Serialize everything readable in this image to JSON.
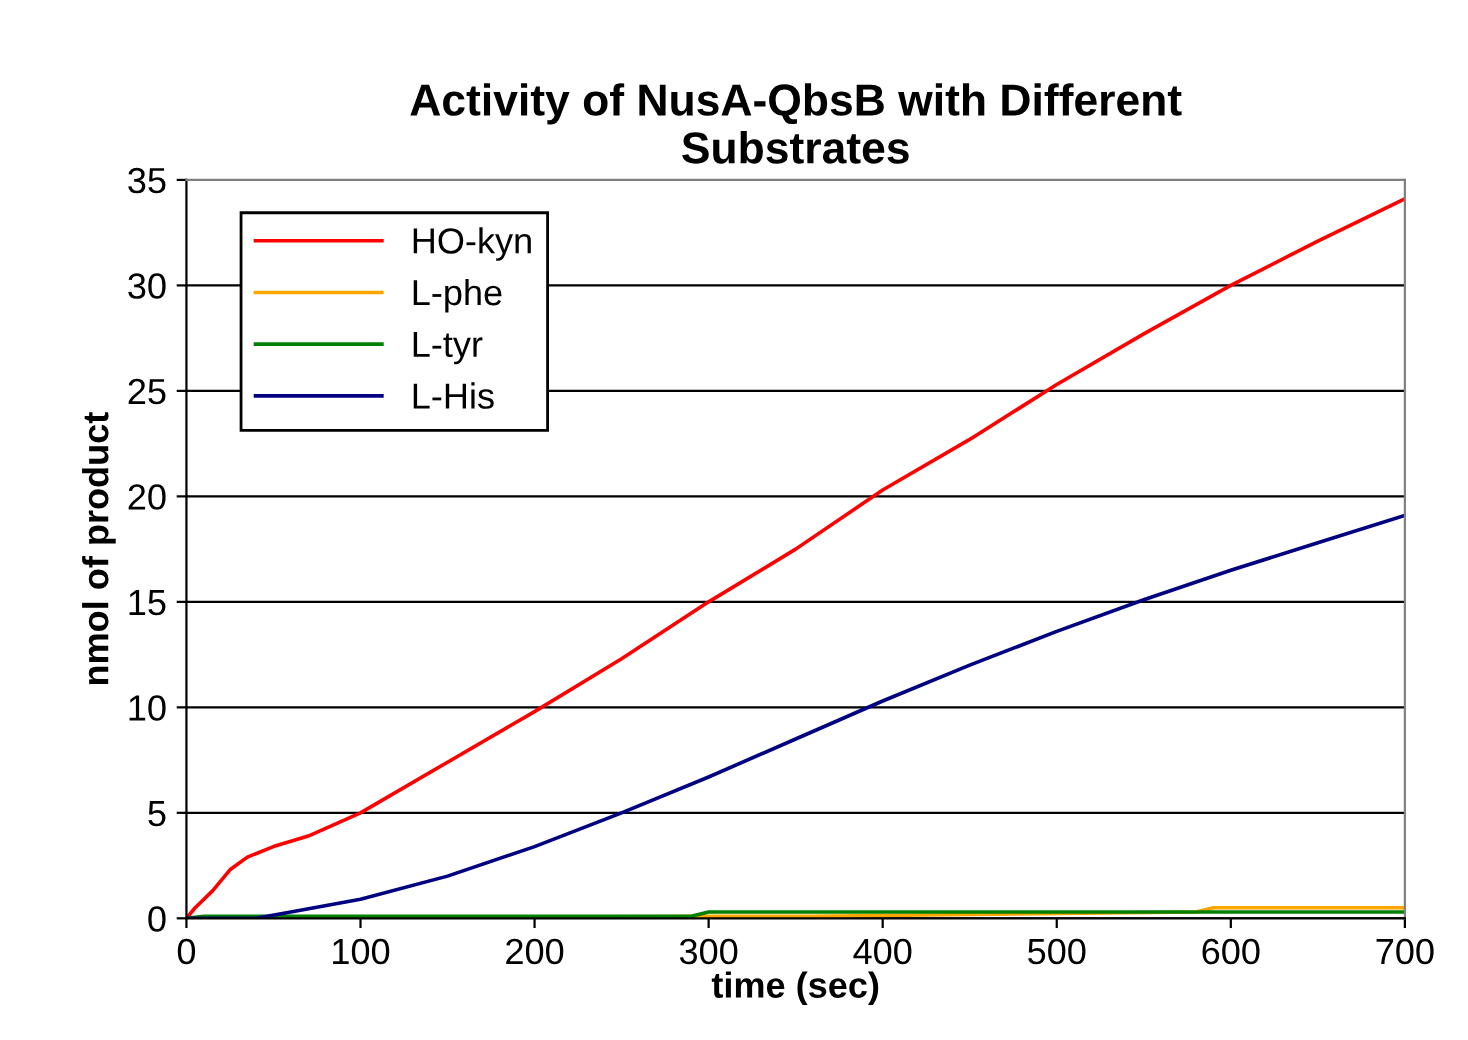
{
  "chart_data": {
    "type": "line",
    "title": "Activity of NusA-QbsB with Different\nSubstrates",
    "xlabel": "time (sec)",
    "ylabel": "nmol of product",
    "xlim": [
      0,
      700
    ],
    "xticks": [
      0,
      100,
      200,
      300,
      400,
      500,
      600,
      700
    ],
    "ylim": [
      0,
      35
    ],
    "yticks": [
      0,
      5,
      10,
      15,
      20,
      25,
      30,
      35
    ],
    "grid": "y",
    "legend": "top left",
    "marker": "none",
    "line_style": "solid",
    "series": [
      {
        "name": "HO-kyn",
        "color": "#ff0000",
        "x": [
          0,
          5,
          15,
          25,
          35,
          50,
          70,
          100,
          150,
          200,
          250,
          300,
          350,
          400,
          450,
          500,
          550,
          600,
          650,
          700
        ],
        "values": [
          0,
          0.5,
          1.3,
          2.3,
          2.9,
          3.4,
          3.9,
          5.0,
          7.4,
          9.8,
          12.3,
          15.0,
          17.5,
          20.3,
          22.7,
          25.3,
          27.7,
          30.0,
          32.1,
          34.1
        ]
      },
      {
        "name": "L-phe",
        "color": "#ffa500",
        "x": [
          0,
          100,
          300,
          360,
          580,
          590,
          700
        ],
        "values": [
          0,
          0,
          0.1,
          0.1,
          0.3,
          0.5,
          0.5
        ]
      },
      {
        "name": "L-tyr",
        "color": "#008000",
        "x": [
          0,
          10,
          290,
          300,
          700
        ],
        "values": [
          0,
          0.1,
          0.1,
          0.3,
          0.3
        ]
      },
      {
        "name": "L-His",
        "color": "#000080",
        "x": [
          0,
          40,
          60,
          100,
          150,
          200,
          250,
          300,
          350,
          400,
          450,
          500,
          550,
          600,
          650,
          700
        ],
        "values": [
          0,
          0,
          0.3,
          0.9,
          2.0,
          3.4,
          5.0,
          6.7,
          8.5,
          10.3,
          12.0,
          13.6,
          15.1,
          16.5,
          17.8,
          19.1
        ]
      }
    ]
  }
}
